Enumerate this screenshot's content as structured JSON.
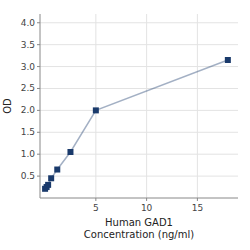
{
  "chart_data": {
    "type": "line",
    "xlabel": "Human GAD1\nConcentration (ng/ml)",
    "ylabel": "OD",
    "x": [
      0,
      0.15,
      0.3,
      0.6,
      1.2,
      2.5,
      5,
      18
    ],
    "values": [
      0.21,
      0.25,
      0.3,
      0.45,
      0.65,
      1.05,
      2.0,
      3.15
    ],
    "color": "#1a3a6b",
    "marker": "square",
    "xlim": [
      -0.5,
      19
    ],
    "ylim": [
      0,
      4.2
    ],
    "xticks": [
      5,
      10,
      15
    ],
    "yticks": [
      0.5,
      {
        "value": 1.0,
        "label": "1.0"
      },
      1.5,
      {
        "value": 2.0,
        "label": "2.0"
      },
      2.5,
      {
        "value": 3.0,
        "label": "3.0"
      },
      3.5,
      {
        "value": 4.0,
        "label": "4.0"
      }
    ],
    "grid": true
  }
}
